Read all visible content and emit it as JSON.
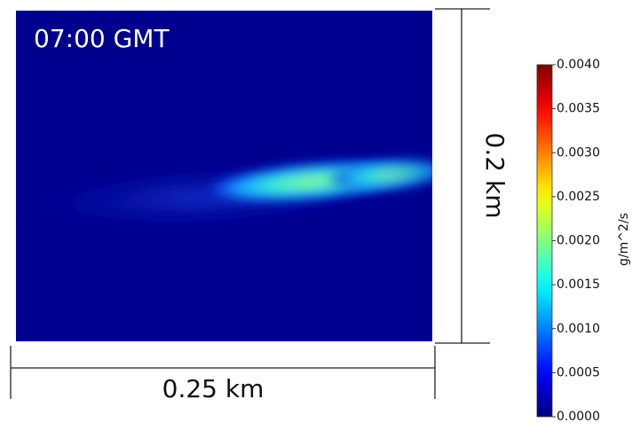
{
  "chart_data": {
    "type": "image",
    "title": "07:00 GMT",
    "x_scale_label": "0.25 km",
    "y_scale_label": "0.2 km",
    "colorbar": {
      "label": "g/m^2/s",
      "colormap": "jet",
      "lim": [
        0,
        0.004
      ],
      "ticks": [
        {
          "value": 0,
          "label": "0.0000"
        },
        {
          "value": 0.0005,
          "label": "0.0005"
        },
        {
          "value": 0.001,
          "label": "0.0010"
        },
        {
          "value": 0.0015,
          "label": "0.0015"
        },
        {
          "value": 0.002,
          "label": "0.0020"
        },
        {
          "value": 0.0025,
          "label": "0.0025"
        },
        {
          "value": 0.003,
          "label": "0.0030"
        },
        {
          "value": 0.0035,
          "label": "0.0035"
        },
        {
          "value": 0.004,
          "label": "0.0040"
        }
      ]
    }
  }
}
